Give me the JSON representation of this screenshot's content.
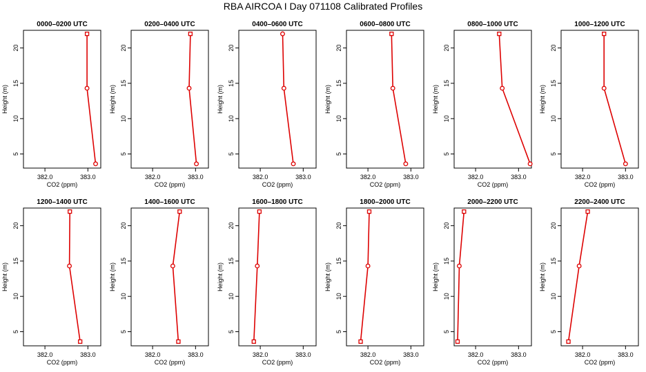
{
  "title": "RBA AIRCOA I  Day 071108  Calibrated Profiles",
  "colors": {
    "line": "#dd0000",
    "axis": "#000000"
  },
  "chart_data": [
    {
      "type": "line",
      "title": "0000–0200 UTC",
      "xlabel": "CO2 (ppm)",
      "ylabel": "Height (m)",
      "xlim": [
        381.5,
        383.3
      ],
      "ylim": [
        3,
        22.5
      ],
      "xticks": [
        382.0,
        383.0
      ],
      "yticks": [
        5,
        10,
        15,
        20
      ],
      "grid": false,
      "x": [
        382.98,
        382.98,
        383.18
      ],
      "y": [
        22,
        14.3,
        3.6
      ],
      "markers": [
        "square",
        "circle",
        "circle"
      ]
    },
    {
      "type": "line",
      "title": "0200–0400 UTC",
      "xlabel": "CO2 (ppm)",
      "ylabel": "Height (m)",
      "xlim": [
        381.5,
        383.3
      ],
      "ylim": [
        3,
        22.5
      ],
      "xticks": [
        382.0,
        383.0
      ],
      "yticks": [
        5,
        10,
        15,
        20
      ],
      "grid": false,
      "x": [
        382.88,
        382.85,
        383.02
      ],
      "y": [
        22,
        14.3,
        3.6
      ],
      "markers": [
        "square",
        "circle",
        "circle"
      ]
    },
    {
      "type": "line",
      "title": "0400–0600 UTC",
      "xlabel": "CO2 (ppm)",
      "ylabel": "Height (m)",
      "xlim": [
        381.5,
        383.3
      ],
      "ylim": [
        3,
        22.5
      ],
      "xticks": [
        382.0,
        383.0
      ],
      "yticks": [
        5,
        10,
        15,
        20
      ],
      "grid": false,
      "x": [
        382.52,
        382.55,
        382.77
      ],
      "y": [
        22,
        14.3,
        3.6
      ],
      "markers": [
        "circle",
        "circle",
        "circle"
      ]
    },
    {
      "type": "line",
      "title": "0600–0800 UTC",
      "xlabel": "CO2 (ppm)",
      "ylabel": "Height (m)",
      "xlim": [
        381.5,
        383.3
      ],
      "ylim": [
        3,
        22.5
      ],
      "xticks": [
        382.0,
        383.0
      ],
      "yticks": [
        5,
        10,
        15,
        20
      ],
      "grid": false,
      "x": [
        382.55,
        382.58,
        382.88
      ],
      "y": [
        22,
        14.3,
        3.6
      ],
      "markers": [
        "square",
        "circle",
        "circle"
      ]
    },
    {
      "type": "line",
      "title": "0800–1000 UTC",
      "xlabel": "CO2 (ppm)",
      "ylabel": "Height (m)",
      "xlim": [
        381.5,
        383.3
      ],
      "ylim": [
        3,
        22.5
      ],
      "xticks": [
        382.0,
        383.0
      ],
      "yticks": [
        5,
        10,
        15,
        20
      ],
      "grid": false,
      "x": [
        382.55,
        382.62,
        383.27
      ],
      "y": [
        22,
        14.3,
        3.6
      ],
      "markers": [
        "square",
        "circle",
        "circle"
      ]
    },
    {
      "type": "line",
      "title": "1000–1200 UTC",
      "xlabel": "CO2 (ppm)",
      "ylabel": "Height (m)",
      "xlim": [
        381.5,
        383.3
      ],
      "ylim": [
        3,
        22.5
      ],
      "xticks": [
        382.0,
        383.0
      ],
      "yticks": [
        5,
        10,
        15,
        20
      ],
      "grid": false,
      "x": [
        382.5,
        382.5,
        383.0
      ],
      "y": [
        22,
        14.3,
        3.6
      ],
      "markers": [
        "square",
        "circle",
        "circle"
      ]
    },
    {
      "type": "line",
      "title": "1200–1400 UTC",
      "xlabel": "CO2 (ppm)",
      "ylabel": "Height (m)",
      "xlim": [
        381.5,
        383.3
      ],
      "ylim": [
        3,
        22.5
      ],
      "xticks": [
        382.0,
        383.0
      ],
      "yticks": [
        5,
        10,
        15,
        20
      ],
      "grid": false,
      "x": [
        382.58,
        382.57,
        382.82
      ],
      "y": [
        22,
        14.3,
        3.6
      ],
      "markers": [
        "square",
        "circle",
        "square"
      ]
    },
    {
      "type": "line",
      "title": "1400–1600 UTC",
      "xlabel": "CO2 (ppm)",
      "ylabel": "Height (m)",
      "xlim": [
        381.5,
        383.3
      ],
      "ylim": [
        3,
        22.5
      ],
      "xticks": [
        382.0,
        383.0
      ],
      "yticks": [
        5,
        10,
        15,
        20
      ],
      "grid": false,
      "x": [
        382.63,
        382.47,
        382.6
      ],
      "y": [
        22,
        14.3,
        3.6
      ],
      "markers": [
        "square",
        "circle",
        "square"
      ]
    },
    {
      "type": "line",
      "title": "1600–1800 UTC",
      "xlabel": "CO2 (ppm)",
      "ylabel": "Height (m)",
      "xlim": [
        381.5,
        383.3
      ],
      "ylim": [
        3,
        22.5
      ],
      "xticks": [
        382.0,
        383.0
      ],
      "yticks": [
        5,
        10,
        15,
        20
      ],
      "grid": false,
      "x": [
        381.98,
        381.93,
        381.85
      ],
      "y": [
        22,
        14.3,
        3.6
      ],
      "markers": [
        "square",
        "circle",
        "square"
      ]
    },
    {
      "type": "line",
      "title": "1800–2000 UTC",
      "xlabel": "CO2 (ppm)",
      "ylabel": "Height (m)",
      "xlim": [
        381.5,
        383.3
      ],
      "ylim": [
        3,
        22.5
      ],
      "xticks": [
        382.0,
        383.0
      ],
      "yticks": [
        5,
        10,
        15,
        20
      ],
      "grid": false,
      "x": [
        382.03,
        382.0,
        381.83
      ],
      "y": [
        22,
        14.3,
        3.6
      ],
      "markers": [
        "square",
        "circle",
        "square"
      ]
    },
    {
      "type": "line",
      "title": "2000–2200 UTC",
      "xlabel": "CO2 (ppm)",
      "ylabel": "Height (m)",
      "xlim": [
        381.5,
        383.3
      ],
      "ylim": [
        3,
        22.5
      ],
      "xticks": [
        382.0,
        383.0
      ],
      "yticks": [
        5,
        10,
        15,
        20
      ],
      "grid": false,
      "x": [
        381.73,
        381.62,
        381.58
      ],
      "y": [
        22,
        14.3,
        3.6
      ],
      "markers": [
        "square",
        "circle",
        "square"
      ]
    },
    {
      "type": "line",
      "title": "2200–2400 UTC",
      "xlabel": "CO2 (ppm)",
      "ylabel": "Height (m)",
      "xlim": [
        381.5,
        383.3
      ],
      "ylim": [
        3,
        22.5
      ],
      "xticks": [
        382.0,
        383.0
      ],
      "yticks": [
        5,
        10,
        15,
        20
      ],
      "grid": false,
      "x": [
        382.12,
        381.92,
        381.67
      ],
      "y": [
        22,
        14.3,
        3.6
      ],
      "markers": [
        "square",
        "circle",
        "square"
      ]
    }
  ]
}
